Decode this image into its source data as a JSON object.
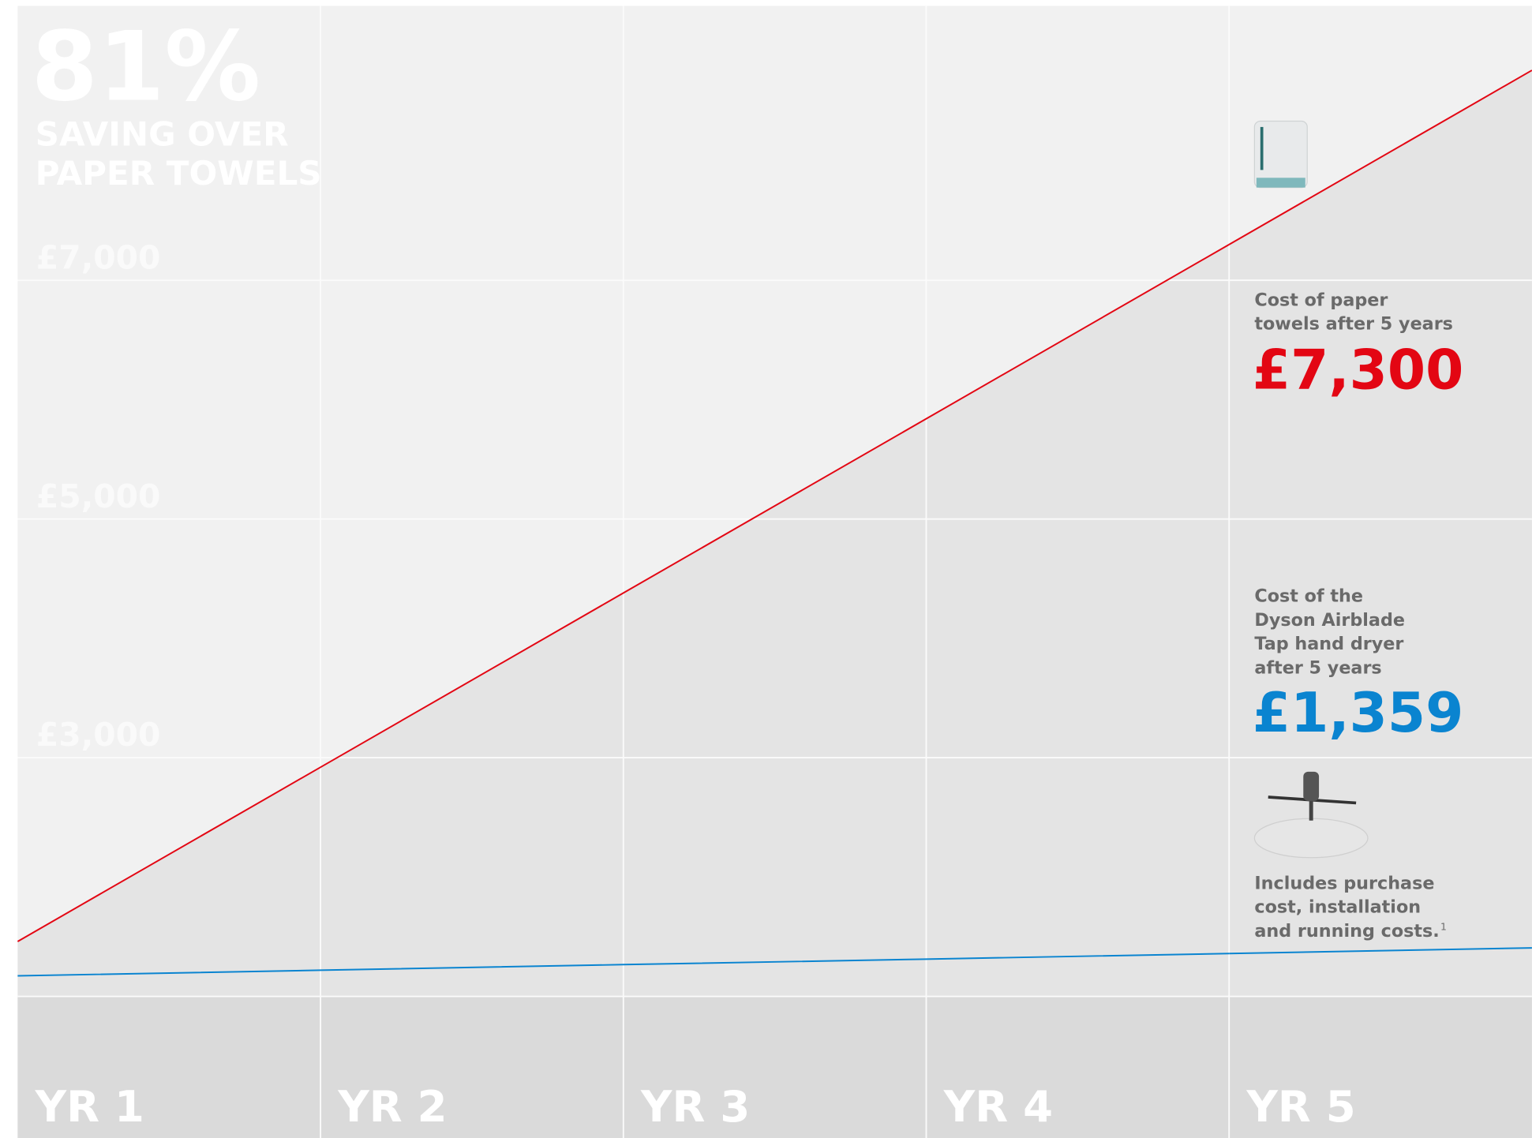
{
  "chart_data": {
    "type": "line",
    "highlight": "81%",
    "subtitle": [
      "SAVING OVER",
      "PAPER TOWELS"
    ],
    "categories": [
      "YR 1",
      "YR 2",
      "YR 3",
      "YR 4",
      "YR 5"
    ],
    "series": [
      {
        "color": "#e30613",
        "values": [
          1460,
          2920,
          4380,
          5840,
          7300
        ],
        "value_labels": [
          null,
          null,
          null,
          null,
          "£7,300"
        ]
      },
      {
        "color": "#0a84d0",
        "values": [
          1172,
          1219,
          1266,
          1312,
          1359
        ],
        "value_labels": [
          null,
          null,
          null,
          null,
          "£1,359"
        ]
      }
    ],
    "annotations": [
      {
        "lines": [
          "Cost of paper",
          "towels after 5 years"
        ]
      },
      {
        "lines": [
          "Cost of the",
          "Dyson Airblade",
          "Tap hand dryer",
          "after 5 years"
        ]
      },
      {
        "lines": [
          "Includes purchase",
          "cost, installation",
          "and running costs."
        ],
        "footnote": "1"
      }
    ],
    "ylim": [
      1000,
      9300
    ],
    "yticks": [
      {
        "value": 3000,
        "label": "£3,000"
      },
      {
        "value": 5000,
        "label": "£5,000"
      },
      {
        "value": 7000,
        "label": "£7,000"
      }
    ],
    "grid": true
  }
}
